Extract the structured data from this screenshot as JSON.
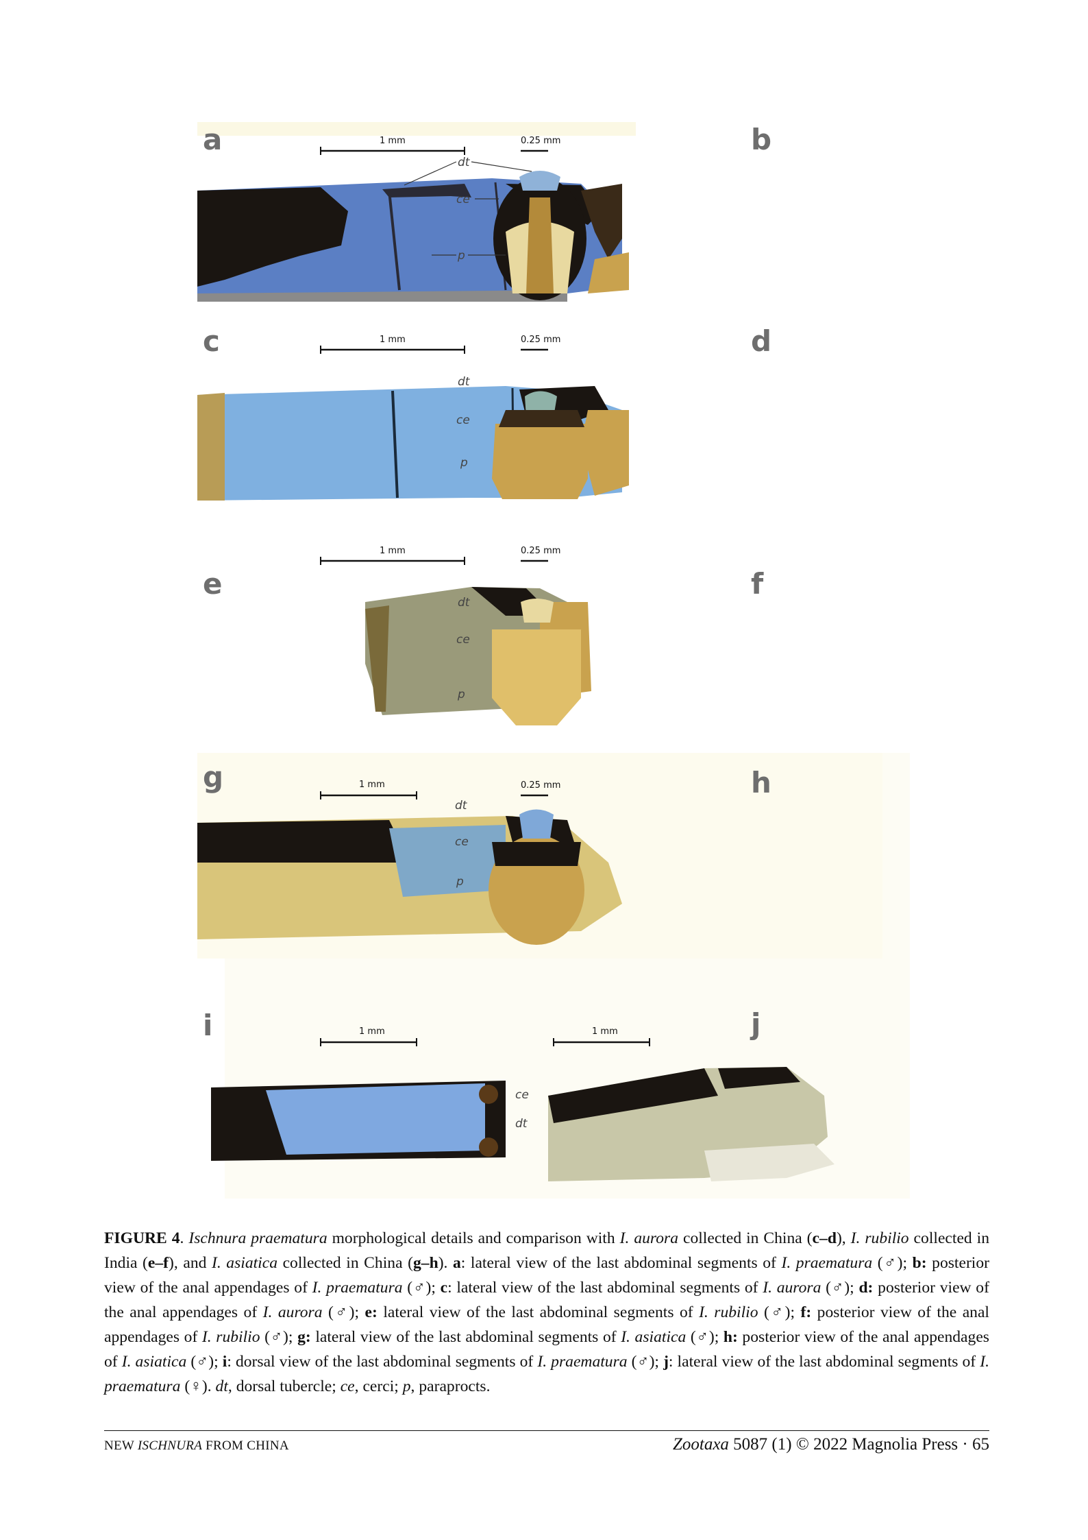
{
  "figure": {
    "panel_labels": [
      "a",
      "b",
      "c",
      "d",
      "e",
      "f",
      "g",
      "h",
      "i",
      "j"
    ],
    "scale_bars": {
      "a": "1 mm",
      "b": "0.25 mm",
      "c": "1 mm",
      "d": "0.25 mm",
      "e": "1 mm",
      "f": "0.25 mm",
      "g": "1 mm",
      "h": "0.25 mm",
      "i": "1 mm",
      "j": "1 mm"
    },
    "annotations": {
      "dt": "dt",
      "ce": "ce",
      "p": "p"
    },
    "colors": {
      "blue": "#5b7fc4",
      "light_blue": "#7fb0e0",
      "black": "#1a1511",
      "tan": "#c9a24e",
      "pale_yellow": "#e8d9a0"
    }
  },
  "caption": {
    "label": "FIGURE 4",
    "species": "Ischnura praematura",
    "t1": " morphological details and comparison with ",
    "sp_aurora": "I. aurora",
    "t2": " collected in China (",
    "cd": "c–d",
    "t3": "), ",
    "sp_rubilio": "I. rubilio",
    "t4": " collected in India (",
    "ef": "e–f",
    "t5": "), and ",
    "sp_asiatica": "I. asiatica",
    "t6": " collected in China (",
    "gh": "g–h",
    "t7": "). ",
    "a_label": "a",
    "a_text": ": lateral view of the last abdominal segments of ",
    "sp_praematura": "I. praematura",
    "male": " (♂); ",
    "b_label": "b:",
    "b_text": " posterior view of the anal appendages of ",
    "c_label": "c",
    "c_text": ": lateral view of the last abdominal segments of ",
    "d_label": "d:",
    "d_text": " posterior view of the anal appendages of ",
    "e_label": "e:",
    "e_text": " lateral view of the last abdominal segments of ",
    "f_label": "f:",
    "f_text": " posterior view of the anal appendages of ",
    "g_label": "g:",
    "g_text": " lateral view of the last abdominal segments of ",
    "h_label": "h:",
    "h_text": " posterior view of the anal appendages of ",
    "i_label": "i",
    "i_text": ": dorsal view of the last abdominal segments of ",
    "j_label": "j",
    "j_text": ": lateral view of the last abdominal segments of ",
    "female": " (♀). ",
    "dt": "dt",
    "dt_text": ", dorsal tubercle; ",
    "ce": "ce",
    "ce_text": ", cerci; ",
    "p": "p",
    "p_text": ", paraprocts."
  },
  "footer": {
    "left_pre": "NEW ",
    "left_italic": "ISCHNURA",
    "left_post": " FROM CHINA",
    "journal": "Zootaxa",
    "issue": " 5087 (1) © 2022 Magnolia Press",
    "sep": " · ",
    "page": "65"
  }
}
